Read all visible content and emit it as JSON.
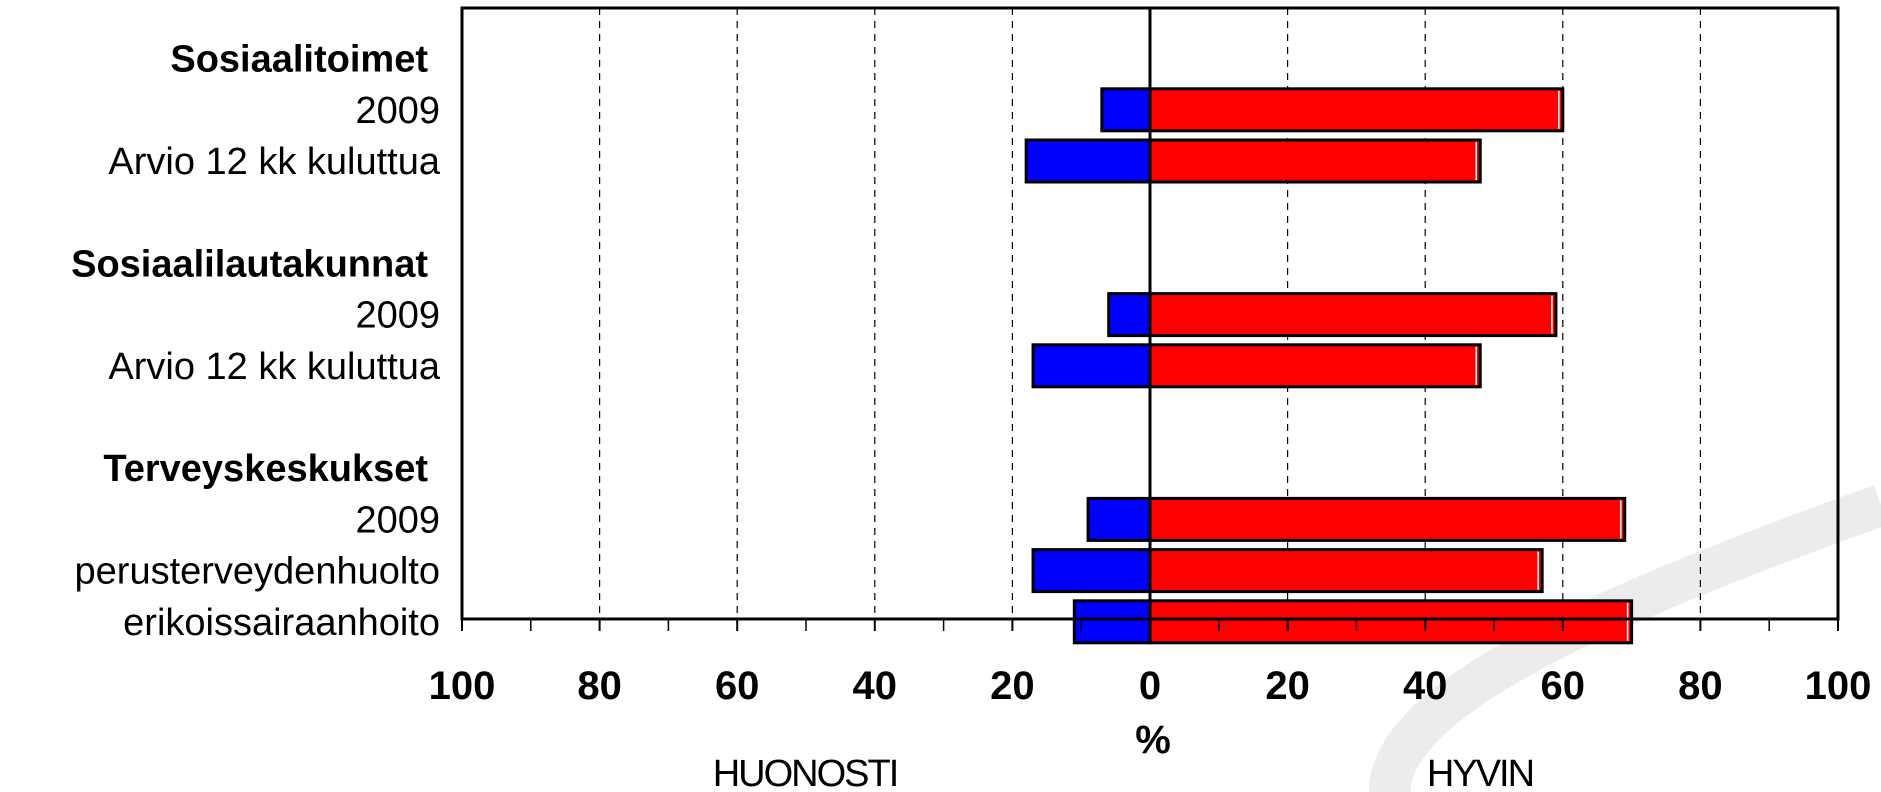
{
  "chart_data": {
    "type": "bar",
    "orientation": "horizontal",
    "xlabel": "%",
    "xlim": [
      -100,
      100
    ],
    "xticks": [
      -100,
      -80,
      -60,
      -40,
      -20,
      0,
      20,
      40,
      60,
      80,
      100
    ],
    "xtick_labels": [
      "100",
      "80",
      "60",
      "40",
      "20",
      "0",
      "20",
      "40",
      "60",
      "80",
      "100"
    ],
    "side_labels": {
      "negative": "HUONOSTI",
      "positive": "HYVIN"
    },
    "grid": "vertical dashed",
    "colors": {
      "negative": "#0000ff",
      "positive": "#ff0000"
    },
    "rows": [
      {
        "label": "Sosiaalitoimet",
        "header": true
      },
      {
        "label": "2009",
        "header": false,
        "neg": -7,
        "pos": 60
      },
      {
        "label": "Arvio 12 kk kuluttua",
        "header": false,
        "neg": -18,
        "pos": 48
      },
      {
        "label": "",
        "header": false
      },
      {
        "label": "Sosiaalilautakunnat",
        "header": true
      },
      {
        "label": "2009",
        "header": false,
        "neg": -6,
        "pos": 59
      },
      {
        "label": "Arvio 12 kk kuluttua",
        "header": false,
        "neg": -17,
        "pos": 48
      },
      {
        "label": "",
        "header": false
      },
      {
        "label": "Terveyskeskukset",
        "header": true
      },
      {
        "label": "2009",
        "header": false,
        "neg": -9,
        "pos": 69
      },
      {
        "label": "perusterveydenhuolto",
        "header": false,
        "neg": -17,
        "pos": 57
      },
      {
        "label": "erikoissairaanhoito",
        "header": false,
        "neg": -11,
        "pos": 70
      }
    ]
  }
}
